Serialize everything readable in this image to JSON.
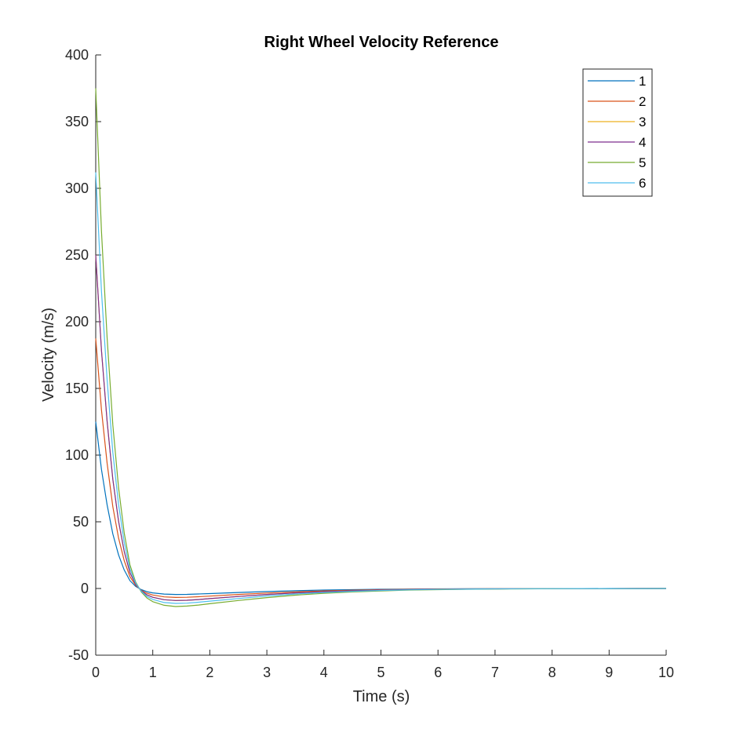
{
  "chart_data": {
    "type": "line",
    "title": "Right Wheel Velocity Reference",
    "xlabel": "Time (s)",
    "ylabel": "Velocity (m/s)",
    "xlim": [
      0,
      10
    ],
    "ylim": [
      -50,
      400
    ],
    "xticks": [
      0,
      1,
      2,
      3,
      4,
      5,
      6,
      7,
      8,
      9,
      10
    ],
    "yticks": [
      -50,
      0,
      50,
      100,
      150,
      200,
      250,
      300,
      350,
      400
    ],
    "grid": false,
    "legend_position": "top-right",
    "x": [
      0,
      0.1,
      0.2,
      0.3,
      0.4,
      0.5,
      0.6,
      0.7,
      0.8,
      0.9,
      1.0,
      1.2,
      1.4,
      1.6,
      1.8,
      2.0,
      2.5,
      3.0,
      3.5,
      4.0,
      4.5,
      5.0,
      5.5,
      6.0,
      6.5,
      7.0,
      7.5,
      8.0,
      8.5,
      9.0,
      9.5,
      10.0
    ],
    "series": [
      {
        "name": "1",
        "color": "#0072BD",
        "values": [
          125,
          89.3,
          62.7,
          40.9,
          25.2,
          13.9,
          5.9,
          1.6,
          -0.9,
          -2.4,
          -3.3,
          -4.2,
          -4.5,
          -4.4,
          -4.1,
          -3.8,
          -3.0,
          -2.3,
          -1.7,
          -1.2,
          -0.9,
          -0.6,
          -0.4,
          -0.3,
          -0.2,
          -0.1,
          -0.1,
          -0.05,
          -0.03,
          -0.02,
          -0.01,
          0
        ]
      },
      {
        "name": "2",
        "color": "#D95319",
        "values": [
          187.5,
          134,
          94,
          61.3,
          37.8,
          20.9,
          8.8,
          2.4,
          -1.4,
          -3.6,
          -4.9,
          -6.3,
          -6.7,
          -6.6,
          -6.2,
          -5.7,
          -4.5,
          -3.4,
          -2.5,
          -1.8,
          -1.3,
          -0.9,
          -0.6,
          -0.4,
          -0.3,
          -0.2,
          -0.1,
          -0.08,
          -0.05,
          -0.03,
          -0.02,
          0
        ]
      },
      {
        "name": "3",
        "color": "#EDB120",
        "values": [
          250,
          178.6,
          125.4,
          81.8,
          50.4,
          27.8,
          11.8,
          3.2,
          -1.8,
          -4.8,
          -6.6,
          -8.4,
          -9.0,
          -8.8,
          -8.3,
          -7.6,
          -6.0,
          -4.5,
          -3.3,
          -2.4,
          -1.7,
          -1.2,
          -0.8,
          -0.6,
          -0.4,
          -0.3,
          -0.2,
          -0.1,
          -0.07,
          -0.04,
          -0.02,
          0
        ]
      },
      {
        "name": "4",
        "color": "#7E2F8E",
        "values": [
          250,
          178.6,
          125.4,
          81.8,
          50.4,
          27.8,
          11.8,
          3.2,
          -1.8,
          -4.8,
          -6.6,
          -8.4,
          -9.0,
          -8.8,
          -8.3,
          -7.6,
          -6.0,
          -4.5,
          -3.3,
          -2.4,
          -1.7,
          -1.2,
          -0.8,
          -0.6,
          -0.4,
          -0.3,
          -0.2,
          -0.1,
          -0.07,
          -0.04,
          -0.02,
          0
        ]
      },
      {
        "name": "5",
        "color": "#77AC30",
        "values": [
          375,
          268,
          188,
          122.6,
          75.6,
          41.7,
          17.7,
          4.8,
          -2.7,
          -7.2,
          -9.9,
          -12.6,
          -13.5,
          -13.2,
          -12.4,
          -11.4,
          -9.0,
          -6.8,
          -5.0,
          -3.6,
          -2.6,
          -1.8,
          -1.2,
          -0.9,
          -0.6,
          -0.4,
          -0.3,
          -0.2,
          -0.1,
          -0.06,
          -0.03,
          0
        ]
      },
      {
        "name": "6",
        "color": "#4DBEEE",
        "values": [
          312,
          223,
          156.5,
          102,
          62.9,
          34.7,
          14.7,
          4.0,
          -2.2,
          -6.0,
          -8.2,
          -10.5,
          -11.2,
          -11.0,
          -10.3,
          -9.5,
          -7.5,
          -5.6,
          -4.1,
          -3.0,
          -2.1,
          -1.5,
          -1.0,
          -0.7,
          -0.5,
          -0.3,
          -0.2,
          -0.1,
          -0.08,
          -0.05,
          -0.03,
          0
        ]
      }
    ]
  }
}
